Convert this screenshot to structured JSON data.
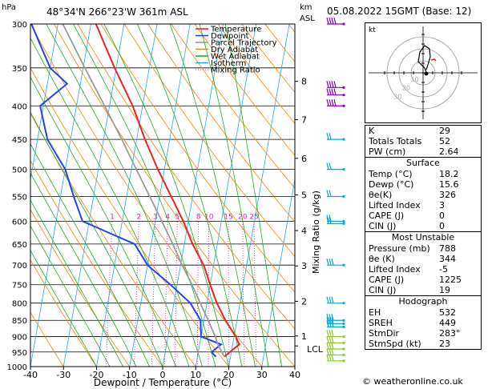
{
  "header": {
    "hpa_label": "hPa",
    "location": "48°34'N  266°23'W  361m  ASL",
    "km_label": "km",
    "asl_label": "ASL",
    "datetime": "05.08.2022  15GMT  (Base: 12)"
  },
  "legend": [
    {
      "label": "Temperature",
      "color": "#ee2222",
      "style": "solid"
    },
    {
      "label": "Dewpoint",
      "color": "#2244ee",
      "style": "solid"
    },
    {
      "label": "Parcel Trajectory",
      "color": "#999999",
      "style": "solid"
    },
    {
      "label": "Dry Adiabat",
      "color": "#ee8800",
      "style": "solid"
    },
    {
      "label": "Wet Adiabat",
      "color": "#22aa22",
      "style": "solid"
    },
    {
      "label": "Isotherm",
      "color": "#22aaee",
      "style": "solid"
    },
    {
      "label": "Mixing Ratio",
      "color": "#dd22aa",
      "style": "dotted"
    }
  ],
  "chart_data": {
    "type": "line",
    "xlabel": "Dewpoint / Temperature (°C)",
    "ylabel_right": "Mixing Ratio (g/kg)",
    "x_ticks": [
      -40,
      -30,
      -20,
      -10,
      0,
      10,
      20,
      30,
      40
    ],
    "xlim": [
      -40,
      40
    ],
    "pressure_levels": [
      300,
      350,
      400,
      450,
      500,
      550,
      600,
      650,
      700,
      750,
      800,
      850,
      900,
      950,
      1000
    ],
    "ylim_hpa": [
      1000,
      300
    ],
    "skew_deg_per_decade": 35,
    "km_ticks": [
      {
        "km": "1",
        "p": 898
      },
      {
        "km": "2",
        "p": 795
      },
      {
        "km": "3",
        "p": 702
      },
      {
        "km": "4",
        "p": 620
      },
      {
        "km": "5",
        "p": 547
      },
      {
        "km": "6",
        "p": 481
      },
      {
        "km": "7",
        "p": 420
      },
      {
        "km": "8",
        "p": 367
      }
    ],
    "lcl": {
      "label": "LCL",
      "p": 930
    },
    "mixing_ratio_labels": [
      "1",
      "2",
      "3",
      "4",
      "5",
      "8",
      "10",
      "15",
      "20",
      "25"
    ],
    "mixing_ratio_values": [
      1,
      2,
      3,
      4,
      5,
      8,
      10,
      15,
      20,
      25
    ],
    "series": [
      {
        "name": "Temperature",
        "color": "#ee2222",
        "points": [
          [
            966,
            18.2
          ],
          [
            950,
            19.5
          ],
          [
            925,
            22.0
          ],
          [
            900,
            20.5
          ],
          [
            850,
            16.5
          ],
          [
            800,
            13.0
          ],
          [
            750,
            10.0
          ],
          [
            700,
            7.0
          ],
          [
            650,
            2.5
          ],
          [
            600,
            -1.5
          ],
          [
            550,
            -6.5
          ],
          [
            500,
            -12.0
          ],
          [
            450,
            -17.5
          ],
          [
            400,
            -23.0
          ],
          [
            350,
            -30.5
          ],
          [
            300,
            -38.5
          ]
        ]
      },
      {
        "name": "Dewpoint",
        "color": "#2244ee",
        "points": [
          [
            966,
            15.6
          ],
          [
            950,
            14.0
          ],
          [
            925,
            16.5
          ],
          [
            900,
            10.0
          ],
          [
            850,
            9.0
          ],
          [
            800,
            5.0
          ],
          [
            750,
            -2.0
          ],
          [
            700,
            -10.0
          ],
          [
            650,
            -15.0
          ],
          [
            600,
            -32.0
          ],
          [
            550,
            -36.0
          ],
          [
            500,
            -40.0
          ],
          [
            450,
            -47.0
          ],
          [
            400,
            -51.0
          ],
          [
            370,
            -44.0
          ],
          [
            350,
            -50.0
          ],
          [
            300,
            -58.0
          ]
        ]
      },
      {
        "name": "Parcel Trajectory",
        "color": "#999999",
        "points": [
          [
            966,
            18.2
          ],
          [
            930,
            15.8
          ],
          [
            900,
            14.3
          ],
          [
            850,
            11.3
          ],
          [
            800,
            8.0
          ],
          [
            750,
            4.5
          ],
          [
            700,
            0.5
          ],
          [
            650,
            -3.5
          ],
          [
            600,
            -8.0
          ],
          [
            550,
            -13.0
          ],
          [
            500,
            -18.5
          ],
          [
            450,
            -24.5
          ],
          [
            400,
            -31.5
          ],
          [
            350,
            -39.5
          ],
          [
            300,
            -48.5
          ]
        ]
      }
    ],
    "wind_barbs_p": [
      300,
      375,
      385,
      400,
      450,
      500,
      550,
      600,
      605,
      700,
      800,
      850,
      860,
      870,
      900,
      920,
      940,
      960,
      980
    ]
  },
  "hodograph": {
    "unit_label": "kt",
    "ring_labels": [
      "10",
      "20",
      "30"
    ]
  },
  "indices": [
    {
      "label": "K",
      "value": "29"
    },
    {
      "label": "Totals Totals",
      "value": "52"
    },
    {
      "label": "PW (cm)",
      "value": "2.64"
    }
  ],
  "surface": {
    "title": "Surface",
    "rows": [
      {
        "label": "Temp (°C)",
        "value": "18.2"
      },
      {
        "label": "Dewp (°C)",
        "value": "15.6"
      },
      {
        "label": "θe(K)",
        "value": "326"
      },
      {
        "label": "Lifted Index",
        "value": "3"
      },
      {
        "label": "CAPE (J)",
        "value": "0"
      },
      {
        "label": "CIN (J)",
        "value": "0"
      }
    ]
  },
  "most_unstable": {
    "title": "Most Unstable",
    "rows": [
      {
        "label": "Pressure (mb)",
        "value": "788"
      },
      {
        "label": "θe (K)",
        "value": "344"
      },
      {
        "label": "Lifted Index",
        "value": "-5"
      },
      {
        "label": "CAPE (J)",
        "value": "1225"
      },
      {
        "label": "CIN (J)",
        "value": "19"
      }
    ]
  },
  "hodo_table": {
    "title": "Hodograph",
    "rows": [
      {
        "label": "EH",
        "value": "532"
      },
      {
        "label": "SREH",
        "value": "449"
      },
      {
        "label": "StmDir",
        "value": "283°"
      },
      {
        "label": "StmSpd (kt)",
        "value": "23"
      }
    ]
  },
  "footer": "© weatheronline.co.uk"
}
